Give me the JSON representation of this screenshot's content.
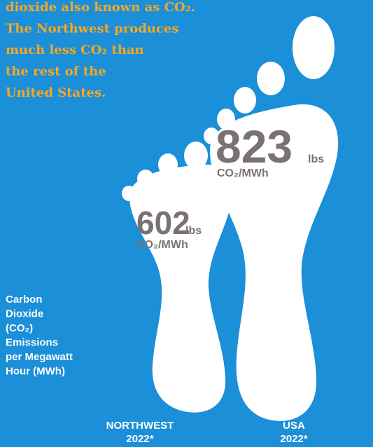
{
  "intro": [
    "dioxide also known as CO₂.",
    "The Northwest produces",
    "much less CO₂ than",
    "the rest of the",
    "United States."
  ],
  "side_label": [
    "Carbon",
    "Dioxide",
    "(CO₂)",
    "Emissions",
    "per Megawatt",
    "Hour (MWh)"
  ],
  "footprints": [
    {
      "value": "602",
      "unit": "lbs",
      "per": "CO₂/MWh",
      "region": "NORTHWEST",
      "year": "2022*"
    },
    {
      "value": "823",
      "unit": "lbs",
      "per": "CO₂/MWh",
      "region": "USA",
      "year": "2022*"
    }
  ]
}
